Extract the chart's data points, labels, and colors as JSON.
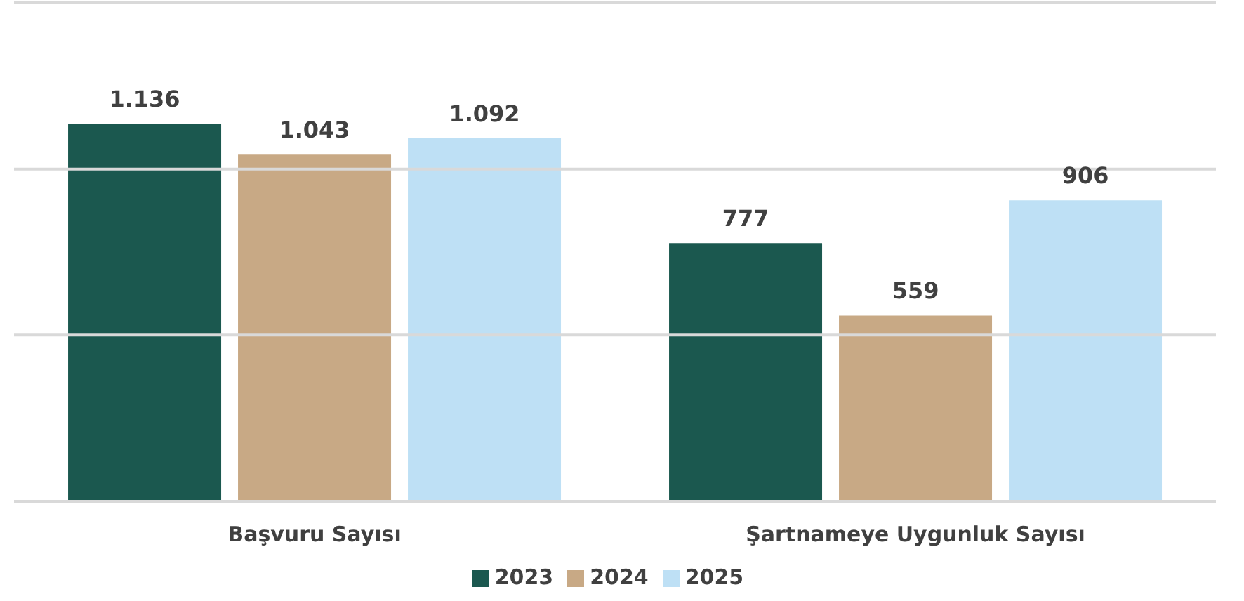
{
  "chart_data": {
    "type": "bar",
    "categories": [
      "Başvuru Sayısı",
      "Şartnameye Uygunluk Sayısı"
    ],
    "series": [
      {
        "name": "2023",
        "color": "#1b584f",
        "values": [
          1136,
          777
        ],
        "value_labels": [
          "1.136",
          "777"
        ]
      },
      {
        "name": "2024",
        "color": "#c8a985",
        "values": [
          1043,
          559
        ],
        "value_labels": [
          "1.043",
          "559"
        ]
      },
      {
        "name": "2025",
        "color": "#bee0f5",
        "values": [
          1092,
          906
        ],
        "value_labels": [
          "1.092",
          "906"
        ]
      }
    ],
    "ylim": [
      0,
      1500
    ],
    "yticks": [
      {
        "value": 0,
        "label": null
      },
      {
        "value": 500,
        "label": null
      },
      {
        "value": 1000,
        "label": null
      },
      {
        "value": 1500,
        "label": null
      }
    ],
    "grid": "y",
    "legend": "bottom",
    "tick_labels": "x"
  }
}
